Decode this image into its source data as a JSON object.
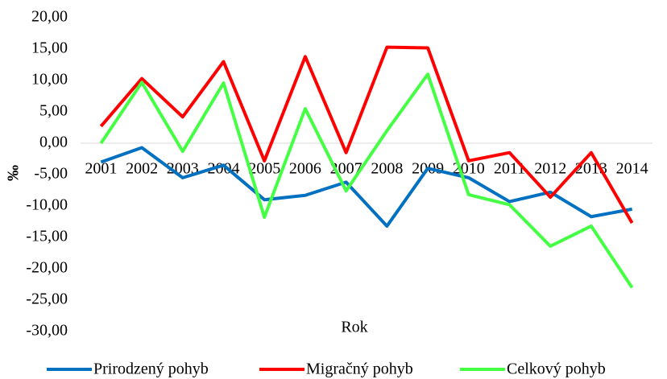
{
  "chart_data": {
    "type": "line",
    "categories": [
      "2001",
      "2002",
      "2003",
      "2004",
      "2005",
      "2006",
      "2007",
      "2008",
      "2009",
      "2010",
      "2011",
      "2012",
      "2013",
      "2014"
    ],
    "series": [
      {
        "name": "Prirodzený pohyb",
        "color": "#0070c0",
        "values": [
          -3,
          -0.7,
          -5.5,
          -3.5,
          -9,
          -8.3,
          -6.2,
          -13.2,
          -4,
          -5.5,
          -9.3,
          -7.8,
          -11.7,
          -10.5
        ]
      },
      {
        "name": "Migračný pohyb",
        "color": "#ff0000",
        "values": [
          2.7,
          10.3,
          4.2,
          13,
          -2.8,
          13.8,
          -1.5,
          15.3,
          15.2,
          -2.8,
          -1.5,
          -8.6,
          -1.5,
          -12.7
        ]
      },
      {
        "name": "Celkový pohyb",
        "color": "#44ff44",
        "values": [
          0,
          9.7,
          -1.3,
          9.6,
          -11.8,
          5.5,
          -7.6,
          2,
          11,
          -8.2,
          -9.8,
          -16.4,
          -13.2,
          -23
        ]
      }
    ],
    "xlabel": "Rok",
    "ylabel": "‰",
    "ylim": [
      -30,
      20
    ],
    "yticks": [
      {
        "value": -30,
        "label": "-30,00"
      },
      {
        "value": -25,
        "label": "-25,00"
      },
      {
        "value": -20,
        "label": "-20,00"
      },
      {
        "value": -15,
        "label": "-15,00"
      },
      {
        "value": -10,
        "label": "-10,00"
      },
      {
        "value": -5,
        "label": "-5,00"
      },
      {
        "value": 0,
        "label": "0,00"
      },
      {
        "value": 5,
        "label": "5,00"
      },
      {
        "value": 10,
        "label": "10,00"
      },
      {
        "value": 15,
        "label": "15,00"
      },
      {
        "value": 20,
        "label": "20,00"
      }
    ],
    "grid": false,
    "legend": "bottom"
  }
}
